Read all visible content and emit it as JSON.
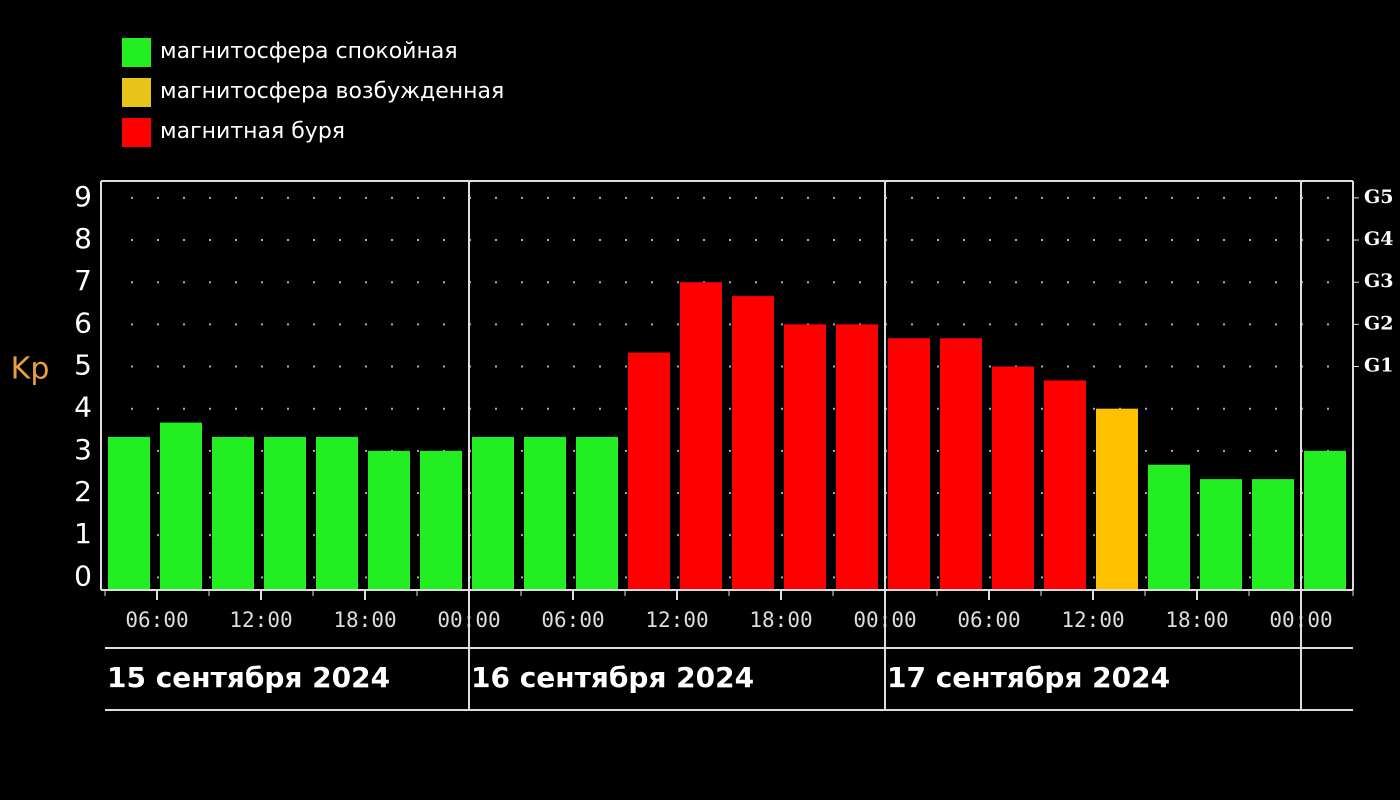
{
  "chart_data": {
    "type": "bar",
    "y_label": "Kp",
    "legend": [
      {
        "name": "магнитосфера спокойная",
        "color": "#22ee22"
      },
      {
        "name": "магнитосфера возбужденная",
        "color": "#e6c419"
      },
      {
        "name": "магнитная буря",
        "color": "#ff0000"
      }
    ],
    "values": [
      3.33,
      3.67,
      3.33,
      3.33,
      3.33,
      3.0,
      3.0,
      3.33,
      3.33,
      3.33,
      5.33,
      7.0,
      6.67,
      6.0,
      6.0,
      5.67,
      5.67,
      5.0,
      4.67,
      4.0,
      2.67,
      2.33,
      2.33,
      3.0
    ],
    "colors": [
      "#22ee22",
      "#22ee22",
      "#22ee22",
      "#22ee22",
      "#22ee22",
      "#22ee22",
      "#22ee22",
      "#22ee22",
      "#22ee22",
      "#22ee22",
      "#ff0000",
      "#ff0000",
      "#ff0000",
      "#ff0000",
      "#ff0000",
      "#ff0000",
      "#ff0000",
      "#ff0000",
      "#ff0000",
      "#ffc000",
      "#22ee22",
      "#22ee22",
      "#22ee22",
      "#22ee22"
    ],
    "ylim": [
      -0.3,
      9.4
    ],
    "yticks": [
      0,
      1,
      2,
      3,
      4,
      5,
      6,
      7,
      8,
      9
    ],
    "y2lim": [
      -0.3,
      9.4
    ],
    "y2ticks": [
      {
        "value": 5,
        "label": "G1"
      },
      {
        "value": 6,
        "label": "G2"
      },
      {
        "value": 7,
        "label": "G3"
      },
      {
        "value": 8,
        "label": "G4"
      },
      {
        "value": 9,
        "label": "G5"
      }
    ],
    "xlim": [
      0,
      24
    ],
    "xticks": [
      {
        "value": 1,
        "label": "06:00"
      },
      {
        "value": 3,
        "label": "12:00"
      },
      {
        "value": 5,
        "label": "18:00"
      },
      {
        "value": 7,
        "label": "00:00"
      },
      {
        "value": 9,
        "label": "06:00"
      },
      {
        "value": 11,
        "label": "12:00"
      },
      {
        "value": 13,
        "label": "18:00"
      },
      {
        "value": 15,
        "label": "00:00"
      },
      {
        "value": 17,
        "label": "06:00"
      },
      {
        "value": 19,
        "label": "12:00"
      },
      {
        "value": 21,
        "label": "18:00"
      },
      {
        "value": 23,
        "label": "00:00"
      }
    ],
    "days": [
      {
        "label": "15 сентября 2024",
        "start": 0
      },
      {
        "label": "16 сентября 2024",
        "start": 7
      },
      {
        "label": "17 сентября 2024",
        "start": 15
      }
    ],
    "day_boundaries": [
      7,
      15,
      23
    ],
    "grid": true
  }
}
